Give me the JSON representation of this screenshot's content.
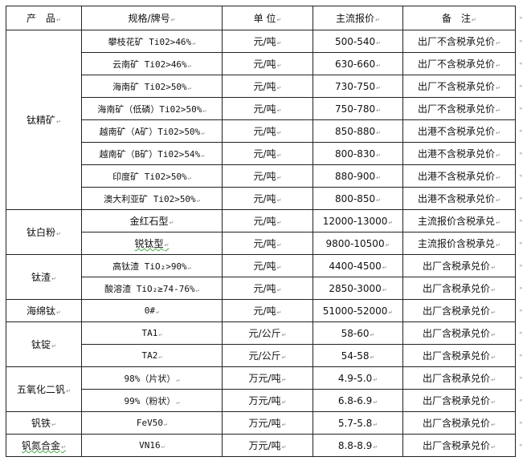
{
  "headers": [
    "产　品",
    "规格/牌号",
    "单 位",
    "主流报价",
    "备　注"
  ],
  "groups": [
    {
      "product": "钛精矿",
      "rows": [
        [
          "攀枝花矿 Ti02>46%",
          "元/吨",
          "500-540",
          "出厂不含税承兑价"
        ],
        [
          "云南矿 Ti02>46%",
          "元/吨",
          "630-660",
          "出厂不含税承兑价"
        ],
        [
          "海南矿 Ti02>50%",
          "元/吨",
          "730-750",
          "出厂不含税承兑价"
        ],
        [
          "海南矿（低磷）Ti02>50%",
          "元/吨",
          "750-780",
          "出厂不含税承兑价"
        ],
        [
          "越南矿（A矿）Ti02>50%",
          "元/吨",
          "850-880",
          "出港不含税承兑价"
        ],
        [
          "越南矿（B矿）Ti02>54%",
          "元/吨",
          "800-830",
          "出港不含税承兑价"
        ],
        [
          "印度矿 Ti02>50%",
          "元/吨",
          "880-900",
          "出港不含税承兑价"
        ],
        [
          "澳大利亚矿 Ti02>50%",
          "元/吨",
          "800-850",
          "出港不含税承兑价"
        ]
      ]
    },
    {
      "product": "钛白粉",
      "rows": [
        [
          "金红石型",
          "元/吨",
          "12000-13000",
          "主流报价含税承兑"
        ],
        [
          "锐钛型",
          "元/吨",
          "9800-10500",
          "主流报价含税承兑"
        ]
      ]
    },
    {
      "product": "钛渣",
      "rows": [
        [
          "高钛渣 TiO₂>90%",
          "元/吨",
          "4400-4500",
          "出厂含税承兑价"
        ],
        [
          "酸溶渣 TiO₂≥74-76%",
          "元/吨",
          "2850-3000",
          "出厂含税承兑价"
        ]
      ]
    },
    {
      "product": "海绵钛",
      "rows": [
        [
          "0#",
          "元/吨",
          "51000-52000",
          "出厂含税承兑价"
        ]
      ]
    },
    {
      "product": "钛锭",
      "rows": [
        [
          "TA1",
          "元/公斤",
          "58-60",
          "出厂含税承兑价"
        ],
        [
          "TA2",
          "元/公斤",
          "54-58",
          "出厂含税承兑价"
        ]
      ]
    },
    {
      "product": "五氧化二钒",
      "rows": [
        [
          "98%（片状）",
          "万元/吨",
          "4.9-5.0",
          "出厂含税承兑价"
        ],
        [
          "99%（粉状）",
          "万元/吨",
          "6.8-6.9",
          "出厂含税承兑价"
        ]
      ]
    },
    {
      "product": "钒铁",
      "rows": [
        [
          "FeV50",
          "万元/吨",
          "5.7-5.8",
          "出厂含税承兑价"
        ]
      ]
    },
    {
      "product": "钒氮合金",
      "rows": [
        [
          "VN16",
          "万元/吨",
          "8.8-8.9",
          "出厂含税承兑价"
        ]
      ]
    }
  ]
}
